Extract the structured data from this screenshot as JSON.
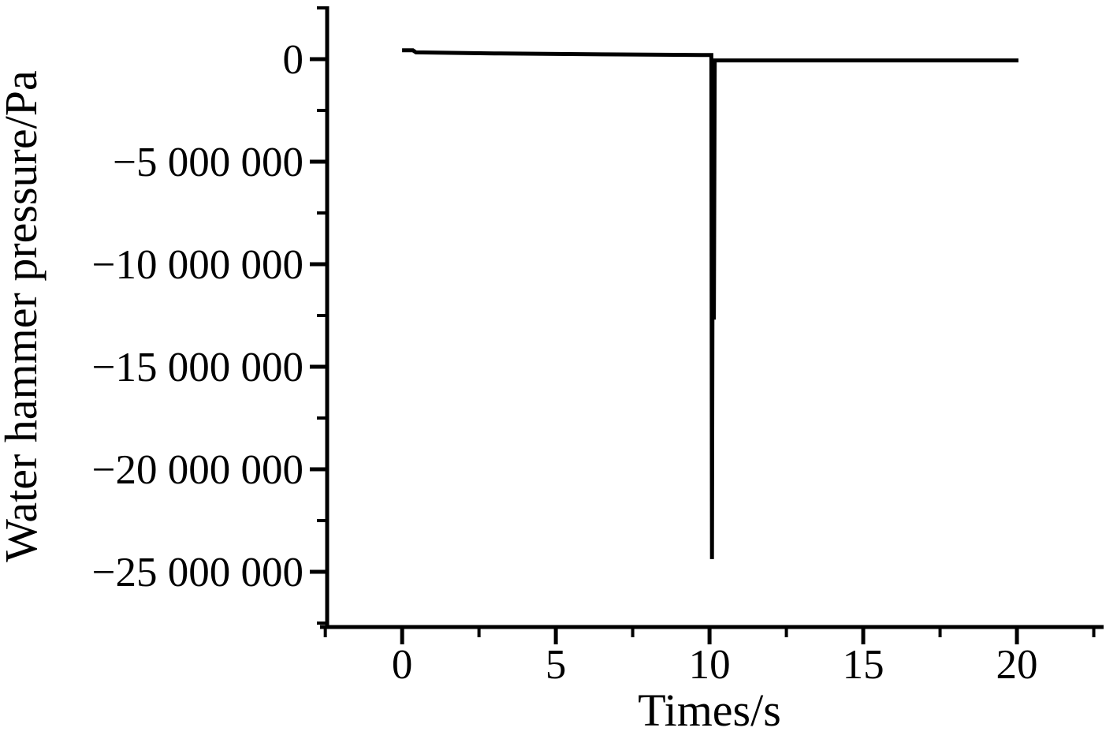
{
  "figure": {
    "background_color": "#ffffff",
    "foreground_color": "#000000"
  },
  "chart_data": {
    "type": "line",
    "title": "",
    "xlabel": "Times/s",
    "ylabel": "Water hammer pressure/Pa",
    "grid": false,
    "legend": null,
    "xlim": [
      -2.44,
      22.82
    ],
    "ylim": [
      -27690000,
      2500000
    ],
    "x_ticks": {
      "values": [
        0,
        5,
        10,
        15,
        20
      ],
      "labels": [
        "0",
        "5",
        "10",
        "15",
        "20"
      ]
    },
    "x_minor_ticks": [
      -2.5,
      2.5,
      7.5,
      12.5,
      17.5,
      22.5
    ],
    "y_ticks": {
      "values": [
        0,
        -5000000,
        -10000000,
        -15000000,
        -20000000,
        -25000000
      ],
      "labels": [
        "0",
        "−5 000 000",
        "−10 000 000",
        "−15 000 000",
        "−20 000 000",
        "−25 000 000"
      ]
    },
    "y_minor_ticks": [
      2500000,
      -2500000,
      -7500000,
      -12500000,
      -17500000,
      -22500000,
      -27500000
    ],
    "series": [
      {
        "name": "water-hammer-pressure",
        "color": "#000000",
        "points": [
          [
            0,
            430000
          ],
          [
            0.35,
            430000
          ],
          [
            0.45,
            330000
          ],
          [
            3,
            280000
          ],
          [
            7,
            230000
          ],
          [
            9.95,
            200000
          ],
          [
            10.06,
            200000
          ],
          [
            10.08,
            -24380000
          ],
          [
            10.11,
            -30000
          ],
          [
            10.14,
            -12700000
          ],
          [
            10.17,
            -60000
          ],
          [
            20.05,
            -60000
          ]
        ]
      }
    ]
  }
}
